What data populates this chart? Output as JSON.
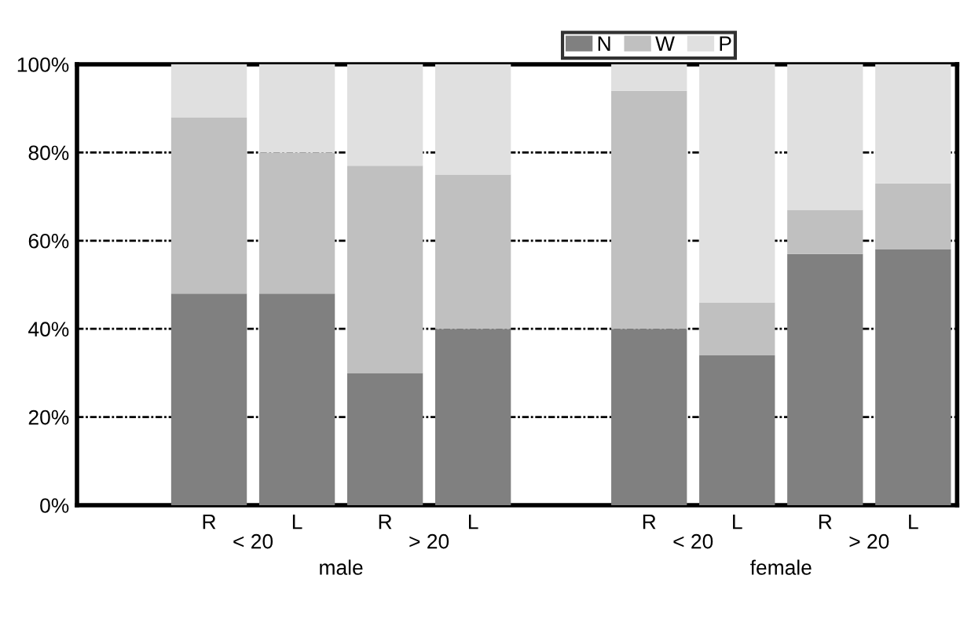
{
  "chart_data": {
    "type": "bar",
    "stacked": true,
    "categories": [
      null,
      "R",
      "L",
      "R",
      "L",
      null,
      "R",
      "L",
      "R",
      "L"
    ],
    "series": [
      {
        "name": "N",
        "color": "#808080",
        "values": [
          null,
          48,
          48,
          30,
          40,
          null,
          40,
          34,
          57,
          58
        ]
      },
      {
        "name": "W",
        "color": "#c0c0c0",
        "values": [
          null,
          40,
          32,
          47,
          35,
          null,
          54,
          12,
          10,
          15
        ]
      },
      {
        "name": "P",
        "color": "#e0e0e0",
        "values": [
          null,
          12,
          20,
          23,
          25,
          null,
          6,
          54,
          33,
          27
        ]
      }
    ],
    "annotations": [
      "< 20",
      "> 20",
      "male",
      "< 20",
      "> 20",
      "female"
    ],
    "ylim": [
      0,
      100
    ],
    "yticks": [
      {
        "value": 0,
        "label": "0%"
      },
      {
        "value": 20,
        "label": "20%"
      },
      {
        "value": 40,
        "label": "40%"
      },
      {
        "value": 60,
        "label": "60%"
      },
      {
        "value": 80,
        "label": "80%"
      },
      {
        "value": 100,
        "label": "100%"
      }
    ],
    "grid": "y",
    "legend": "top right"
  }
}
